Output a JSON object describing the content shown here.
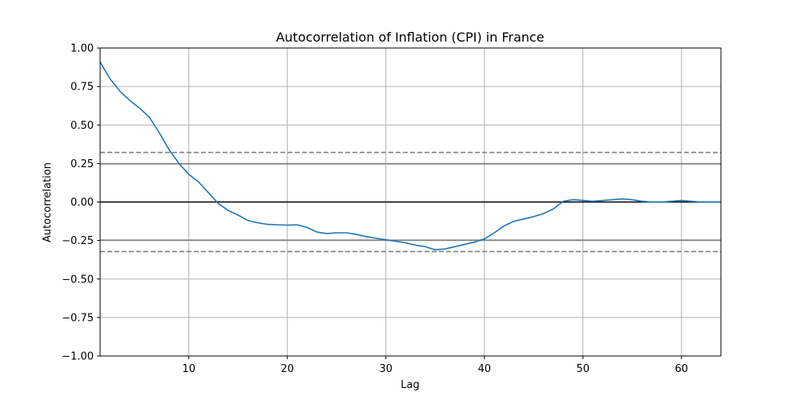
{
  "chart_data": {
    "type": "line",
    "title": "Autocorrelation of Inflation (CPI) in France",
    "xlabel": "Lag",
    "ylabel": "Autocorrelation",
    "xlim": [
      1,
      64
    ],
    "ylim": [
      -1.0,
      1.0
    ],
    "grid": true,
    "x_ticks": [
      10,
      20,
      30,
      40,
      50,
      60
    ],
    "x_tick_labels": [
      "10",
      "20",
      "30",
      "40",
      "50",
      "60"
    ],
    "y_ticks": [
      -1.0,
      -0.75,
      -0.5,
      -0.25,
      0.0,
      0.25,
      0.5,
      0.75,
      1.0
    ],
    "y_tick_labels": [
      "−1.00",
      "−0.75",
      "−0.50",
      "−0.25",
      "0.00",
      "0.25",
      "0.50",
      "0.75",
      "1.00"
    ],
    "confidence_bands": {
      "z95": 0.248,
      "z99": 0.322
    },
    "colors": {
      "series": "#1f77b4",
      "zero_line": "#000000",
      "band_line": "#808080",
      "grid": "#b0b0b0"
    },
    "series": [
      {
        "x": [
          1,
          2,
          3,
          4,
          5,
          6,
          7,
          8,
          9,
          10,
          11,
          12,
          13,
          14,
          15,
          16,
          17,
          18,
          19,
          20,
          21,
          22,
          23,
          24,
          25,
          26,
          27,
          28,
          29,
          30,
          31,
          32,
          33,
          34,
          35,
          36,
          37,
          38,
          39,
          40,
          41,
          42,
          43,
          44,
          45,
          46,
          47,
          48,
          49,
          50,
          51,
          52,
          53,
          54,
          55,
          56,
          57,
          58,
          59,
          60,
          61,
          62,
          63,
          64
        ],
        "values": [
          0.91,
          0.8,
          0.72,
          0.66,
          0.61,
          0.55,
          0.45,
          0.34,
          0.25,
          0.18,
          0.13,
          0.06,
          -0.01,
          -0.055,
          -0.085,
          -0.12,
          -0.135,
          -0.145,
          -0.148,
          -0.15,
          -0.148,
          -0.165,
          -0.195,
          -0.205,
          -0.2,
          -0.2,
          -0.21,
          -0.225,
          -0.235,
          -0.245,
          -0.255,
          -0.265,
          -0.28,
          -0.29,
          -0.31,
          -0.305,
          -0.29,
          -0.275,
          -0.26,
          -0.24,
          -0.2,
          -0.155,
          -0.125,
          -0.11,
          -0.095,
          -0.075,
          -0.045,
          0.005,
          0.015,
          0.01,
          0.005,
          0.01,
          0.015,
          0.02,
          0.015,
          0.005,
          0.0,
          0.0,
          0.005,
          0.01,
          0.005,
          0.0,
          0.0,
          0.0
        ]
      }
    ]
  }
}
